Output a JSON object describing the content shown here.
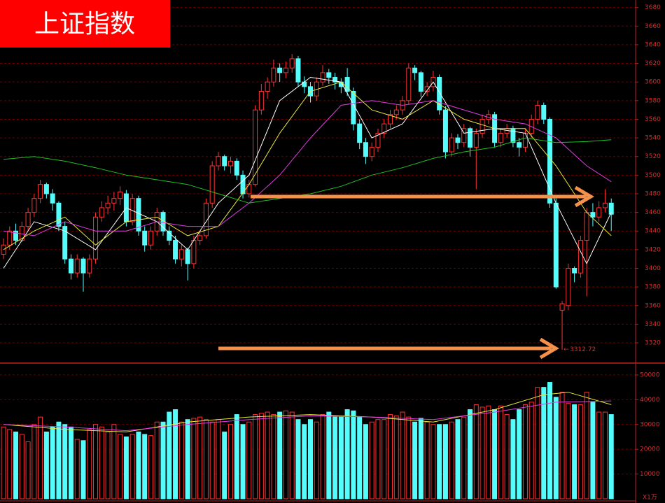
{
  "chart_data": {
    "type": "candlestick",
    "title": "上证指数",
    "up_color": "#ff3232",
    "down_color": "#54fcfc",
    "ylim": [
      3299,
      3688
    ],
    "yticks": [
      3320,
      3340,
      3360,
      3380,
      3400,
      3420,
      3440,
      3460,
      3480,
      3500,
      3520,
      3540,
      3560,
      3580,
      3600,
      3620,
      3640,
      3660,
      3680
    ],
    "grid": true,
    "candles": [
      [
        3415,
        3432,
        3410,
        3425
      ],
      [
        3425,
        3445,
        3420,
        3440
      ],
      [
        3440,
        3448,
        3425,
        3430
      ],
      [
        3430,
        3450,
        3428,
        3445
      ],
      [
        3445,
        3465,
        3440,
        3460
      ],
      [
        3460,
        3480,
        3455,
        3475
      ],
      [
        3475,
        3495,
        3470,
        3490
      ],
      [
        3490,
        3492,
        3475,
        3480
      ],
      [
        3480,
        3485,
        3462,
        3470
      ],
      [
        3470,
        3472,
        3440,
        3445
      ],
      [
        3445,
        3450,
        3405,
        3410
      ],
      [
        3410,
        3415,
        3388,
        3395
      ],
      [
        3395,
        3415,
        3390,
        3410
      ],
      [
        3410,
        3412,
        3375,
        3395
      ],
      [
        3395,
        3415,
        3390,
        3410
      ],
      [
        3410,
        3460,
        3405,
        3455
      ],
      [
        3455,
        3472,
        3450,
        3465
      ],
      [
        3465,
        3478,
        3458,
        3470
      ],
      [
        3470,
        3482,
        3462,
        3475
      ],
      [
        3475,
        3488,
        3468,
        3482
      ],
      [
        3480,
        3484,
        3445,
        3450
      ],
      [
        3450,
        3480,
        3446,
        3475
      ],
      [
        3475,
        3478,
        3435,
        3440
      ],
      [
        3440,
        3445,
        3418,
        3425
      ],
      [
        3425,
        3445,
        3420,
        3440
      ],
      [
        3440,
        3465,
        3435,
        3460
      ],
      [
        3460,
        3462,
        3435,
        3440
      ],
      [
        3440,
        3445,
        3425,
        3430
      ],
      [
        3430,
        3435,
        3405,
        3410
      ],
      [
        3410,
        3425,
        3402,
        3420
      ],
      [
        3420,
        3422,
        3387,
        3405
      ],
      [
        3405,
        3435,
        3400,
        3430
      ],
      [
        3430,
        3440,
        3425,
        3435
      ],
      [
        3435,
        3475,
        3432,
        3470
      ],
      [
        3470,
        3515,
        3465,
        3510
      ],
      [
        3510,
        3525,
        3505,
        3520
      ],
      [
        3520,
        3522,
        3505,
        3510
      ],
      [
        3510,
        3520,
        3502,
        3515
      ],
      [
        3515,
        3518,
        3495,
        3500
      ],
      [
        3500,
        3505,
        3475,
        3480
      ],
      [
        3480,
        3495,
        3476,
        3490
      ],
      [
        3490,
        3575,
        3488,
        3570
      ],
      [
        3570,
        3598,
        3565,
        3590
      ],
      [
        3590,
        3605,
        3582,
        3600
      ],
      [
        3600,
        3624,
        3595,
        3615
      ],
      [
        3615,
        3620,
        3600,
        3610
      ],
      [
        3610,
        3622,
        3604,
        3615
      ],
      [
        3615,
        3630,
        3610,
        3625
      ],
      [
        3625,
        3628,
        3595,
        3600
      ],
      [
        3600,
        3606,
        3588,
        3595
      ],
      [
        3595,
        3600,
        3578,
        3585
      ],
      [
        3585,
        3605,
        3580,
        3600
      ],
      [
        3600,
        3618,
        3596,
        3610
      ],
      [
        3610,
        3614,
        3598,
        3605
      ],
      [
        3605,
        3610,
        3592,
        3600
      ],
      [
        3600,
        3604,
        3588,
        3595
      ],
      [
        3605,
        3615,
        3585,
        3590
      ],
      [
        3590,
        3594,
        3548,
        3555
      ],
      [
        3555,
        3560,
        3528,
        3535
      ],
      [
        3535,
        3540,
        3512,
        3520
      ],
      [
        3520,
        3535,
        3515,
        3530
      ],
      [
        3530,
        3550,
        3525,
        3545
      ],
      [
        3545,
        3560,
        3540,
        3555
      ],
      [
        3555,
        3570,
        3550,
        3565
      ],
      [
        3565,
        3575,
        3560,
        3570
      ],
      [
        3570,
        3585,
        3565,
        3580
      ],
      [
        3580,
        3620,
        3576,
        3615
      ],
      [
        3615,
        3618,
        3602,
        3610
      ],
      [
        3610,
        3612,
        3584,
        3590
      ],
      [
        3590,
        3600,
        3585,
        3595
      ],
      [
        3595,
        3612,
        3590,
        3605
      ],
      [
        3605,
        3608,
        3565,
        3570
      ],
      [
        3570,
        3574,
        3518,
        3525
      ],
      [
        3525,
        3545,
        3520,
        3540
      ],
      [
        3540,
        3544,
        3528,
        3535
      ],
      [
        3535,
        3555,
        3530,
        3550
      ],
      [
        3550,
        3552,
        3520,
        3530
      ],
      [
        3530,
        3550,
        3485,
        3545
      ],
      [
        3545,
        3565,
        3540,
        3560
      ],
      [
        3560,
        3570,
        3555,
        3565
      ],
      [
        3565,
        3568,
        3530,
        3535
      ],
      [
        3535,
        3550,
        3530,
        3545
      ],
      [
        3545,
        3555,
        3540,
        3550
      ],
      [
        3550,
        3553,
        3530,
        3535
      ],
      [
        3535,
        3540,
        3520,
        3530
      ],
      [
        3530,
        3550,
        3525,
        3545
      ],
      [
        3545,
        3565,
        3540,
        3560
      ],
      [
        3560,
        3580,
        3555,
        3575
      ],
      [
        3575,
        3578,
        3555,
        3560
      ],
      [
        3560,
        3562,
        3465,
        3470
      ],
      [
        3470,
        3475,
        3378,
        3380
      ],
      [
        3355,
        3365,
        3312.72,
        3362
      ],
      [
        3360,
        3405,
        3355,
        3400
      ],
      [
        3400,
        3402,
        3385,
        3395
      ],
      [
        3395,
        3435,
        3390,
        3430
      ],
      [
        3430,
        3465,
        3370,
        3460
      ],
      [
        3460,
        3470,
        3445,
        3455
      ],
      [
        3455,
        3472,
        3450,
        3465
      ],
      [
        3465,
        3485,
        3460,
        3470
      ],
      [
        3470,
        3475,
        3440,
        3458
      ]
    ],
    "ma": [
      {
        "color": "#ffffff",
        "x": [
          0,
          5,
          10,
          15,
          20,
          25,
          30,
          35,
          40,
          45,
          50,
          55,
          60,
          65,
          70,
          75,
          80,
          85,
          90,
          95,
          99
        ],
        "values": [
          3400,
          3450,
          3440,
          3420,
          3465,
          3450,
          3420,
          3470,
          3500,
          3580,
          3605,
          3600,
          3540,
          3555,
          3600,
          3545,
          3550,
          3545,
          3470,
          3405,
          3460
        ]
      },
      {
        "color": "#e8e83a",
        "x": [
          0,
          5,
          10,
          15,
          20,
          25,
          30,
          35,
          40,
          45,
          50,
          55,
          60,
          65,
          70,
          75,
          80,
          85,
          90,
          95,
          99
        ],
        "values": [
          3420,
          3440,
          3455,
          3425,
          3450,
          3455,
          3435,
          3445,
          3490,
          3545,
          3590,
          3600,
          3570,
          3560,
          3580,
          3560,
          3550,
          3550,
          3510,
          3460,
          3435
        ]
      },
      {
        "color": "#e03ce0",
        "x": [
          0,
          5,
          10,
          15,
          20,
          25,
          30,
          35,
          40,
          45,
          50,
          55,
          60,
          65,
          70,
          75,
          80,
          85,
          90,
          95,
          99
        ],
        "values": [
          3440,
          3435,
          3450,
          3440,
          3440,
          3450,
          3445,
          3445,
          3470,
          3500,
          3540,
          3575,
          3580,
          3575,
          3580,
          3570,
          3560,
          3555,
          3540,
          3510,
          3493
        ]
      },
      {
        "color": "#22c022",
        "x": [
          0,
          5,
          10,
          15,
          20,
          25,
          30,
          35,
          40,
          45,
          50,
          55,
          60,
          65,
          70,
          75,
          80,
          85,
          90,
          95,
          99
        ],
        "values": [
          3517,
          3520,
          3515,
          3508,
          3500,
          3495,
          3490,
          3480,
          3470,
          3475,
          3480,
          3488,
          3500,
          3508,
          3518,
          3525,
          3530,
          3540,
          3535,
          3536,
          3538
        ]
      }
    ],
    "volume": {
      "unit": "X1万",
      "ylim": [
        0,
        54500
      ],
      "yticks": [
        10000,
        20000,
        30000,
        40000,
        50000
      ],
      "values": [
        29000,
        28000,
        27000,
        26000,
        23000,
        30000,
        33000,
        27000,
        29000,
        31000,
        30000,
        29000,
        24000,
        23500,
        28000,
        30000,
        29000,
        27000,
        30000,
        26000,
        25000,
        26000,
        27000,
        26000,
        25500,
        31000,
        31000,
        35000,
        36000,
        31000,
        32000,
        32500,
        33000,
        32000,
        31000,
        32000,
        27000,
        30000,
        34000,
        30000,
        31000,
        34000,
        34500,
        35000,
        34000,
        35000,
        35500,
        35000,
        32000,
        30000,
        32000,
        31000,
        34000,
        35000,
        33000,
        33000,
        36000,
        35500,
        33000,
        30000,
        31000,
        32000,
        32000,
        34000,
        33500,
        35000,
        33000,
        31000,
        32500,
        31000,
        30000,
        30000,
        30000,
        31000,
        32000,
        33000,
        36000,
        38000,
        37000,
        37500,
        36000,
        37500,
        34000,
        32000,
        36000,
        38000,
        39000,
        45000,
        45000,
        47000,
        41000,
        43000,
        38500,
        38000,
        38000,
        43000,
        39000,
        35000,
        35000,
        34000
      ],
      "ma": [
        {
          "color": "#e8e83a",
          "x": [
            0,
            10,
            20,
            30,
            40,
            50,
            60,
            70,
            80,
            88,
            92,
            99
          ],
          "values": [
            30000,
            28000,
            27000,
            31000,
            33000,
            34000,
            33000,
            31000,
            36000,
            42000,
            43000,
            38000
          ]
        },
        {
          "color": "#e03ce0",
          "x": [
            0,
            10,
            20,
            30,
            40,
            50,
            60,
            70,
            80,
            90,
            99
          ],
          "values": [
            30000,
            29000,
            27500,
            30000,
            32000,
            33500,
            33000,
            32000,
            35000,
            39000,
            39500
          ]
        }
      ]
    }
  }
}
